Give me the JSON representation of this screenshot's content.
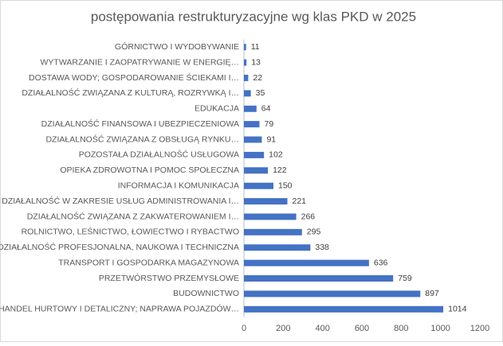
{
  "chart_data": {
    "type": "hbar",
    "title": "postępowania restrukturyzacyjne wg klas PKD w 2025",
    "categories": [
      "GÓRNICTWO I WYDOBYWANIE",
      "WYTWARZANIE I ZAOPATRYWANIE W ENERGIĘ…",
      "DOSTAWA WODY; GOSPODAROWANIE ŚCIEKAMI I…",
      "DZIAŁALNOŚĆ ZWIĄZANA Z KULTURĄ, ROZRYWKĄ I…",
      "EDUKACJA",
      "DZIAŁALNOŚĆ FINANSOWA I UBEZPIECZENIOWA",
      "DZIAŁALNOŚĆ ZWIĄZANA Z OBSŁUGĄ RYNKU…",
      "POZOSTAŁA DZIAŁALNOŚĆ USŁUGOWA",
      "OPIEKA ZDROWOTNA I POMOC SPOŁECZNA",
      "INFORMACJA I KOMUNIKACJA",
      "DZIAŁALNOŚĆ W ZAKRESIE USŁUG ADMINISTROWANIA I…",
      "DZIAŁALNOŚĆ ZWIĄZANA Z ZAKWATEROWANIEM I…",
      "ROLNICTWO, LEŚNICTWO, ŁOWIECTWO I RYBACTWO",
      "DZIAŁALNOŚĆ PROFESJONALNA, NAUKOWA I TECHNICZNA",
      "TRANSPORT I GOSPODARKA MAGAZYNOWA",
      "PRZETWÓRSTWO PRZEMYSŁOWE",
      "BUDOWNICTWO",
      "HANDEL HURTOWY I DETALICZNY; NAPRAWA POJAZDÓW…"
    ],
    "values": [
      11,
      13,
      22,
      35,
      64,
      79,
      91,
      102,
      122,
      150,
      221,
      266,
      295,
      338,
      636,
      759,
      897,
      1014
    ],
    "color": "#4472c4",
    "xlim": [
      0,
      1200
    ],
    "xticks": [
      0,
      200,
      400,
      600,
      800,
      1000,
      1200
    ],
    "grid": false
  }
}
